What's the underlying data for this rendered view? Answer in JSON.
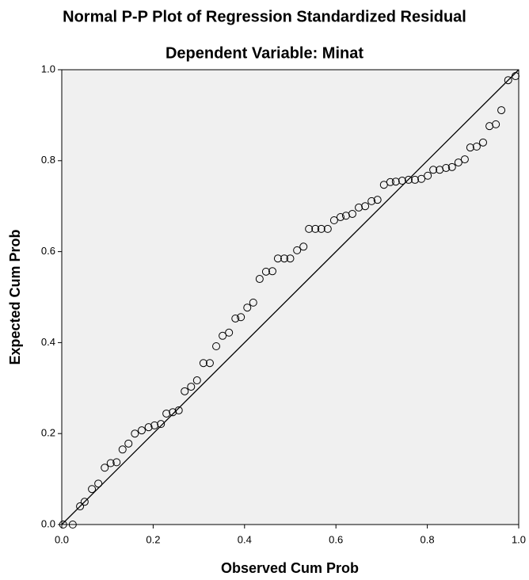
{
  "chart_data": {
    "type": "scatter",
    "title": "Normal P-P Plot of Regression Standardized Residual",
    "subtitle": "Dependent Variable: Minat",
    "x_label": "Observed Cum Prob",
    "y_label": "Expected Cum Prob",
    "xlim": [
      0,
      1
    ],
    "ylim": [
      0,
      1
    ],
    "xticks": [
      {
        "value": 0,
        "label": "0.0"
      },
      0.2,
      0.4,
      0.6,
      0.8,
      {
        "value": 1,
        "label": "1.0"
      }
    ],
    "yticks": [
      {
        "value": 0,
        "label": "0.0"
      },
      0.2,
      0.4,
      0.6,
      0.8,
      {
        "value": 1,
        "label": "1.0"
      }
    ],
    "color": "#000000",
    "background": "#f0f0f0",
    "reference_line": true,
    "x": [
      0.003,
      0.024,
      0.04,
      0.05,
      0.066,
      0.08,
      0.094,
      0.107,
      0.12,
      0.133,
      0.146,
      0.16,
      0.175,
      0.19,
      0.203,
      0.217,
      0.229,
      0.243,
      0.256,
      0.269,
      0.283,
      0.296,
      0.31,
      0.324,
      0.338,
      0.352,
      0.366,
      0.38,
      0.392,
      0.406,
      0.419,
      0.433,
      0.447,
      0.461,
      0.473,
      0.487,
      0.5,
      0.515,
      0.529,
      0.541,
      0.555,
      0.568,
      0.582,
      0.596,
      0.61,
      0.622,
      0.636,
      0.65,
      0.664,
      0.678,
      0.691,
      0.705,
      0.719,
      0.731,
      0.745,
      0.759,
      0.773,
      0.787,
      0.801,
      0.813,
      0.827,
      0.841,
      0.854,
      0.868,
      0.882,
      0.894,
      0.908,
      0.922,
      0.936,
      0.95,
      0.962,
      0.977,
      0.993
    ],
    "y": [
      0.0,
      0.0,
      0.04,
      0.05,
      0.078,
      0.09,
      0.125,
      0.135,
      0.137,
      0.165,
      0.178,
      0.2,
      0.207,
      0.214,
      0.218,
      0.221,
      0.244,
      0.247,
      0.251,
      0.293,
      0.303,
      0.317,
      0.355,
      0.355,
      0.392,
      0.415,
      0.422,
      0.453,
      0.456,
      0.477,
      0.488,
      0.54,
      0.556,
      0.557,
      0.585,
      0.585,
      0.585,
      0.603,
      0.611,
      0.65,
      0.65,
      0.65,
      0.65,
      0.669,
      0.676,
      0.679,
      0.683,
      0.697,
      0.7,
      0.711,
      0.714,
      0.747,
      0.753,
      0.754,
      0.756,
      0.758,
      0.758,
      0.76,
      0.767,
      0.78,
      0.78,
      0.784,
      0.786,
      0.796,
      0.803,
      0.829,
      0.831,
      0.84,
      0.876,
      0.88,
      0.911,
      0.977,
      0.986
    ]
  }
}
